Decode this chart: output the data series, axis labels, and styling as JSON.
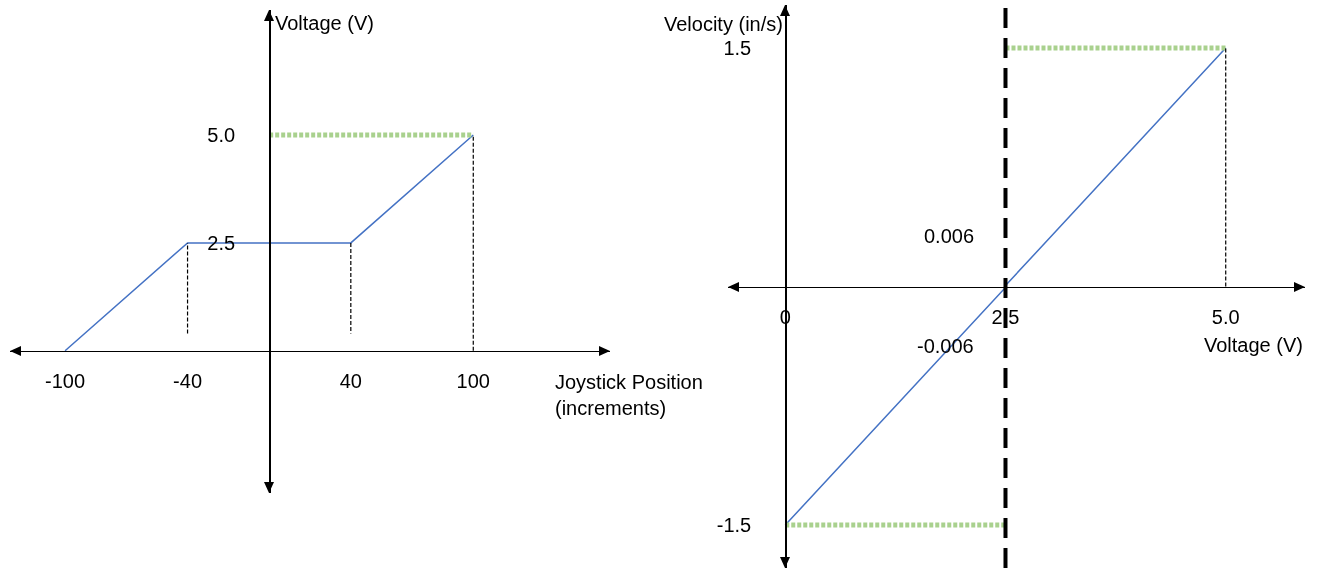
{
  "chart_data": [
    {
      "type": "line",
      "xlabel": "Joystick Position (increments)",
      "ylabel": "Voltage (V)",
      "xlim": [
        -127,
        167
      ],
      "ylim": [
        -3.3,
        7.9
      ],
      "xticks": [
        -100,
        -40,
        40,
        100
      ],
      "yticks": [
        2.5,
        {
          "value": 5,
          "label": "5.0"
        }
      ],
      "grid": false,
      "series": [
        {
          "color": "#4472c4",
          "line_style": "solid",
          "x": [
            -100,
            -40,
            40,
            100
          ],
          "values": [
            0,
            2.5,
            2.5,
            5
          ]
        },
        {
          "color": "#a9d18e",
          "line_style": "dotted",
          "x": [
            0,
            100
          ],
          "values": [
            5,
            5
          ]
        },
        {
          "color": "#000000",
          "line_style": "dashed",
          "x": [
            -40,
            -40
          ],
          "values": [
            0.4,
            2.5
          ]
        },
        {
          "color": "#000000",
          "line_style": "dashed",
          "x": [
            40,
            40
          ],
          "values": [
            2.5,
            0.4
          ]
        },
        {
          "color": "#000000",
          "line_style": "dashed",
          "x": [
            100,
            100
          ],
          "values": [
            0,
            5
          ]
        }
      ]
    },
    {
      "type": "line",
      "xlabel": "Voltage (V)",
      "ylabel": "Velocity (in/s)",
      "xlim": [
        -0.65,
        5.9
      ],
      "ylim": [
        -1.77,
        1.77
      ],
      "xticks": [
        0,
        2.5,
        {
          "value": 5,
          "label": "5.0"
        }
      ],
      "yticks": [
        -1.5,
        1.5
      ],
      "grid": false,
      "annotations": [
        "0.006",
        "-0.006"
      ],
      "ref_lines": [
        {
          "axis": "x",
          "value": 2.5,
          "color": "#000000",
          "line_style": "dashed"
        }
      ],
      "series": [
        {
          "color": "#4472c4",
          "line_style": "solid",
          "x": [
            0,
            2.5,
            2.5,
            5
          ],
          "values": [
            -1.5,
            -0.006,
            0.006,
            1.5
          ]
        },
        {
          "color": "#a9d18e",
          "line_style": "dotted",
          "x": [
            0,
            2.5
          ],
          "values": [
            -1.5,
            -1.5
          ]
        },
        {
          "color": "#a9d18e",
          "line_style": "dotted",
          "x": [
            2.5,
            5
          ],
          "values": [
            1.5,
            1.5
          ]
        },
        {
          "color": "#000000",
          "line_style": "dashed",
          "x": [
            5,
            5
          ],
          "values": [
            0,
            1.5
          ]
        }
      ]
    }
  ]
}
